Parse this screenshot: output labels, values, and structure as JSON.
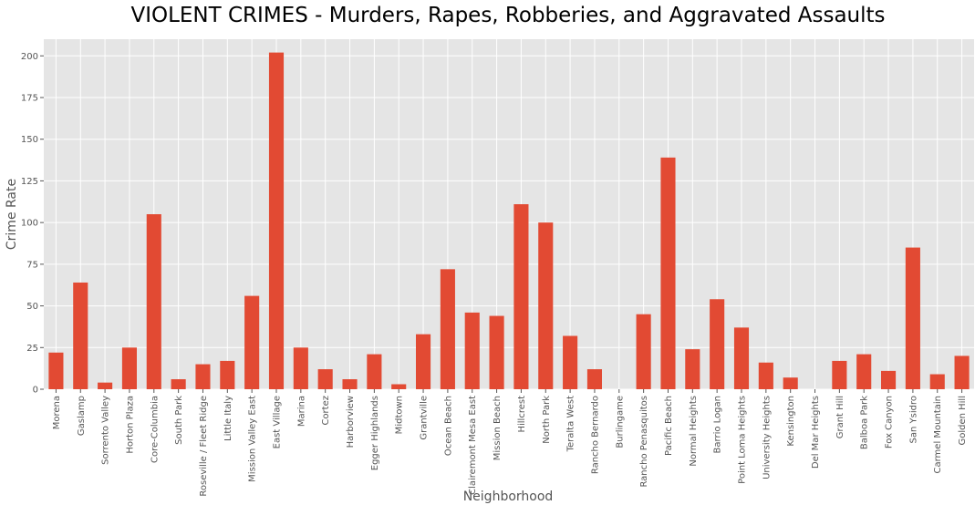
{
  "chart_data": {
    "type": "bar",
    "title": "VIOLENT CRIMES - Murders, Rapes, Robberies, and Aggravated Assaults",
    "xlabel": "Neighborhood",
    "ylabel": "Crime Rate",
    "ylim": [
      0,
      210
    ],
    "yticks": [
      0,
      25,
      50,
      75,
      100,
      125,
      150,
      175,
      200
    ],
    "grid": true,
    "legend": "none",
    "colors": {
      "bar": "#E24A33",
      "background": "#E5E5E5"
    },
    "categories": [
      "Morena",
      "Gaslamp",
      "Sorrento Valley",
      "Horton Plaza",
      "Core-Columbia",
      "South Park",
      "Roseville / Fleet Ridge",
      "Little Italy",
      "Mission Valley East",
      "East Village",
      "Marina",
      "Cortez",
      "Harborview",
      "Egger Highlands",
      "Midtown",
      "Grantville",
      "Ocean Beach",
      "Clairemont Mesa East",
      "Mission Beach",
      "Hillcrest",
      "North Park",
      "Teralta West",
      "Rancho Bernardo",
      "Burlingame",
      "Rancho Penasquitos",
      "Pacific Beach",
      "Normal Heights",
      "Barrio Logan",
      "Point Loma Heights",
      "University Heights",
      "Kensington",
      "Del Mar Heights",
      "Grant Hill",
      "Balboa Park",
      "Fox Canyon",
      "San Ysidro",
      "Carmel Mountain",
      "Golden Hill"
    ],
    "values": [
      22,
      64,
      4,
      25,
      105,
      6,
      15,
      17,
      56,
      202,
      25,
      12,
      6,
      21,
      3,
      33,
      72,
      46,
      44,
      111,
      100,
      32,
      12,
      0,
      45,
      139,
      24,
      54,
      37,
      16,
      7,
      0,
      17,
      21,
      11,
      85,
      9,
      20
    ]
  }
}
